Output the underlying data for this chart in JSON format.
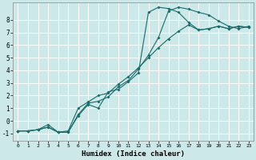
{
  "xlabel": "Humidex (Indice chaleur)",
  "xlim": [
    -0.5,
    23.5
  ],
  "ylim": [
    -1.6,
    9.4
  ],
  "xticks": [
    0,
    1,
    2,
    3,
    4,
    5,
    6,
    7,
    8,
    9,
    10,
    11,
    12,
    13,
    14,
    15,
    16,
    17,
    18,
    19,
    20,
    21,
    22,
    23
  ],
  "yticks": [
    -1,
    0,
    1,
    2,
    3,
    4,
    5,
    6,
    7,
    8
  ],
  "bg_color": "#cce8e8",
  "grid_color": "#aacccc",
  "line_color": "#1a6b6b",
  "line1_x": [
    0,
    1,
    2,
    3,
    4,
    5,
    6,
    7,
    8,
    9,
    10,
    11,
    12,
    13,
    14,
    15,
    16,
    17,
    18,
    19,
    20,
    21,
    22,
    23
  ],
  "line1_y": [
    -0.8,
    -0.8,
    -0.7,
    -0.5,
    -0.9,
    -0.9,
    0.4,
    1.3,
    1.0,
    2.3,
    2.5,
    3.1,
    3.8,
    8.6,
    9.0,
    8.9,
    8.6,
    7.8,
    7.2,
    7.3,
    7.5,
    7.3,
    7.5,
    7.4
  ],
  "line2_x": [
    0,
    1,
    2,
    3,
    4,
    5,
    6,
    7,
    8,
    9,
    10,
    11,
    12,
    13,
    14,
    15,
    16,
    17,
    18,
    19,
    20,
    21,
    22,
    23
  ],
  "line2_y": [
    -0.8,
    -0.8,
    -0.7,
    -0.5,
    -0.9,
    -0.9,
    0.5,
    1.4,
    1.55,
    1.9,
    2.7,
    3.2,
    4.1,
    5.2,
    6.6,
    8.7,
    9.0,
    8.85,
    8.6,
    8.4,
    7.9,
    7.5,
    7.3,
    7.5
  ],
  "line3_x": [
    0,
    1,
    2,
    3,
    4,
    5,
    6,
    7,
    8,
    9,
    10,
    11,
    12,
    13,
    14,
    15,
    16,
    17,
    18,
    19,
    20,
    21,
    22,
    23
  ],
  "line3_y": [
    -0.8,
    -0.8,
    -0.7,
    -0.3,
    -0.9,
    -0.8,
    1.0,
    1.5,
    2.0,
    2.2,
    2.9,
    3.5,
    4.2,
    5.0,
    5.8,
    6.5,
    7.1,
    7.6,
    7.2,
    7.3,
    7.5,
    7.3,
    7.5,
    7.4
  ]
}
